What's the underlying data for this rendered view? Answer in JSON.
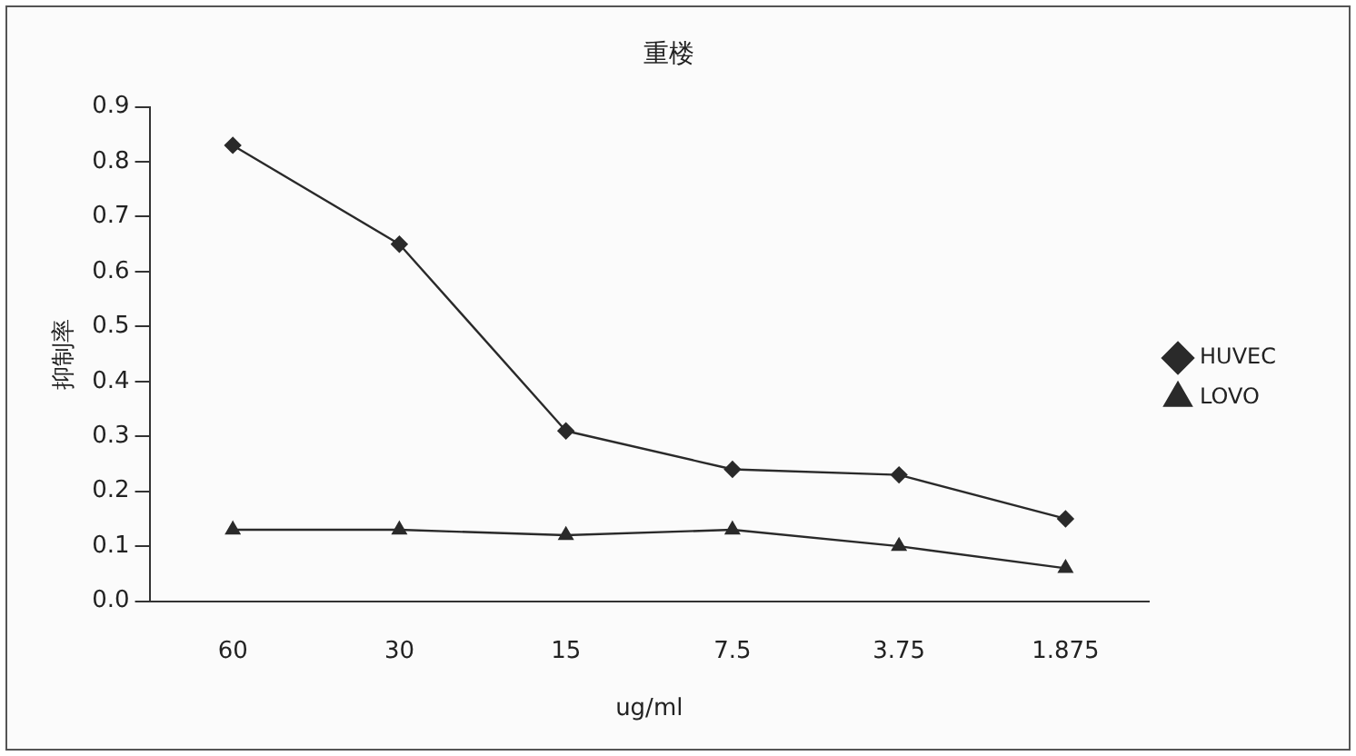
{
  "chart_data": {
    "type": "line",
    "title": "重楼",
    "xlabel": "ug/ml",
    "ylabel": "抑制率",
    "categories": [
      "60",
      "30",
      "15",
      "7.5",
      "3.75",
      "1.875"
    ],
    "series": [
      {
        "name": "HUVEC",
        "color": "#2a2a2a",
        "marker": "diamond",
        "values": [
          0.83,
          0.65,
          0.31,
          0.24,
          0.23,
          0.15
        ]
      },
      {
        "name": "LOVO",
        "color": "#2a2a2a",
        "marker": "triangle",
        "values": [
          0.13,
          0.13,
          0.12,
          0.13,
          0.1,
          0.06
        ]
      }
    ],
    "ylim": [
      0,
      0.9
    ],
    "yticks": [
      {
        "value": 0,
        "label": "0.0"
      },
      0.1,
      0.2,
      0.3,
      0.4,
      0.5,
      0.6,
      0.7,
      0.8,
      0.9
    ],
    "grid": false,
    "legend": "right"
  }
}
